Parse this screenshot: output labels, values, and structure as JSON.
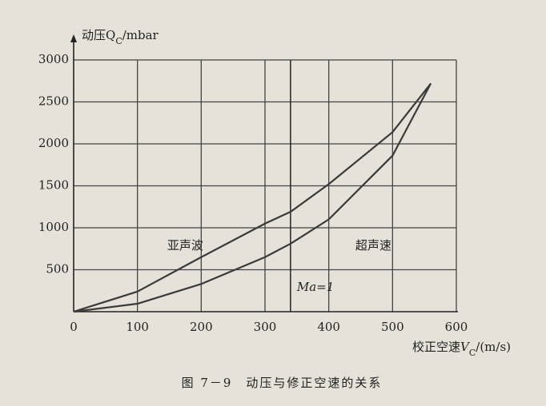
{
  "chart_data": {
    "type": "line",
    "y_label": "动压Q",
    "y_label_sub": "C",
    "y_label_unit": "/mbar",
    "x_label": "校正空速",
    "x_label_var": "V",
    "x_label_sub": "C",
    "x_label_unit": "/(m/s)",
    "caption": "图 7－9　动压与修正空速的关系",
    "xlim": [
      0,
      600
    ],
    "ylim": [
      0,
      3000
    ],
    "xticks": [
      0,
      100,
      200,
      300,
      400,
      500,
      600
    ],
    "yticks": [
      500,
      1000,
      1500,
      2000,
      2500,
      3000
    ],
    "grid": true,
    "series": [
      {
        "color": "#3a3a3a",
        "x": [
          0,
          100,
          200,
          300,
          340,
          400,
          500,
          560
        ],
        "values": [
          0,
          240,
          650,
          1050,
          1190,
          1520,
          2140,
          2720
        ]
      },
      {
        "color": "#3a3a3a",
        "x": [
          0,
          100,
          200,
          300,
          340,
          400,
          500,
          560
        ],
        "values": [
          0,
          95,
          330,
          650,
          810,
          1100,
          1860,
          2720
        ]
      }
    ],
    "mach_line": {
      "x": 340,
      "label": "Ma=1"
    },
    "regions": [
      {
        "label": "亚声波",
        "x": 175,
        "y": 780
      },
      {
        "label": "超声速",
        "x": 470,
        "y": 780
      }
    ]
  }
}
